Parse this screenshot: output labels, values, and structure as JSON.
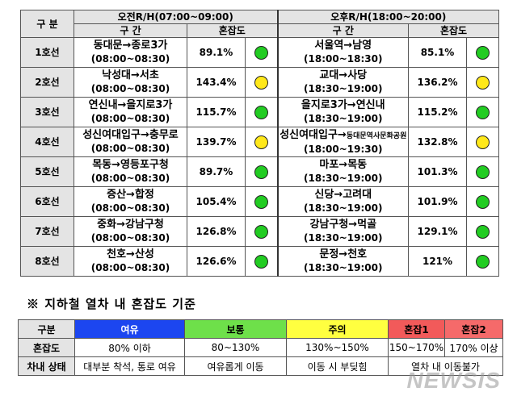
{
  "header": {
    "gubun": "구 분",
    "am": "오전R/H(07:00~09:00)",
    "pm": "오후R/H(18:00~20:00)",
    "section": "구 간",
    "congestion": "혼잡도"
  },
  "colors": {
    "green": "#22cc22",
    "yellow": "#ffe81a",
    "blue": "#1c46f0",
    "lightgreen": "#6ee04a",
    "lightyellow": "#ffff40",
    "red1": "#f25a5a",
    "red2": "#f56a6a"
  },
  "rows": [
    {
      "line": "1호선",
      "am_seg": "동대문→종로3가",
      "am_time": "(08:00~08:30)",
      "am_pct": "89.1%",
      "am_c": "green",
      "pm_seg": "서울역→남영",
      "pm_time": "(18:00~18:30)",
      "pm_pct": "85.1%",
      "pm_c": "green"
    },
    {
      "line": "2호선",
      "am_seg": "낙성대→서초",
      "am_time": "(08:00~08:30)",
      "am_pct": "143.4%",
      "am_c": "yellow",
      "pm_seg": "교대→사당",
      "pm_time": "(18:30~19:00)",
      "pm_pct": "136.2%",
      "pm_c": "yellow"
    },
    {
      "line": "3호선",
      "am_seg": "연신내→을지로3가",
      "am_time": "(08:00~08:30)",
      "am_pct": "115.7%",
      "am_c": "green",
      "pm_seg": "을지로3가→연신내",
      "pm_time": "(18:30~19:00)",
      "pm_pct": "115.2%",
      "pm_c": "green"
    },
    {
      "line": "4호선",
      "am_seg": "성신여대입구→충무로",
      "am_time": "(08:00~08:30)",
      "am_pct": "139.7%",
      "am_c": "yellow",
      "pm_seg": "성신여대입구→",
      "pm_seg_small": "동대문역사문화공원",
      "pm_time": "(18:00~19:30)",
      "pm_pct": "132.8%",
      "pm_c": "yellow"
    },
    {
      "line": "5호선",
      "am_seg": "목동→영등포구청",
      "am_time": "(08:00~08:30)",
      "am_pct": "89.7%",
      "am_c": "green",
      "pm_seg": "마포→목동",
      "pm_time": "(18:30~19:00)",
      "pm_pct": "101.3%",
      "pm_c": "green"
    },
    {
      "line": "6호선",
      "am_seg": "증산→합정",
      "am_time": "(08:00~08:30)",
      "am_pct": "105.4%",
      "am_c": "green",
      "pm_seg": "신당→고려대",
      "pm_time": "(18:30~19:00)",
      "pm_pct": "101.9%",
      "pm_c": "green"
    },
    {
      "line": "7호선",
      "am_seg": "중화→강남구청",
      "am_time": "(08:00~08:30)",
      "am_pct": "126.8%",
      "am_c": "green",
      "pm_seg": "강남구청→먹골",
      "pm_time": "(18:30~19:00)",
      "pm_pct": "129.1%",
      "pm_c": "green"
    },
    {
      "line": "8호선",
      "am_seg": "천호→산성",
      "am_time": "(08:00~08:30)",
      "am_pct": "126.6%",
      "am_c": "green",
      "pm_seg": "문정→천호",
      "pm_time": "(18:30~19:00)",
      "pm_pct": "121%",
      "pm_c": "green"
    }
  ],
  "note": "※  지하철 열차 내 혼잡도 기준",
  "legend": {
    "label_row1": "구분",
    "label_row2": "혼잡도",
    "label_row3": "차내 상태",
    "levels": [
      {
        "name": "여유",
        "range": "80% 이하",
        "state": "대부분 착석, 통로 여유",
        "color": "blue",
        "text_color": "#ffffff"
      },
      {
        "name": "보통",
        "range": "80~130%",
        "state": "여유롭게 이동",
        "color": "lightgreen",
        "text_color": "#000000"
      },
      {
        "name": "주의",
        "range": "130%~150%",
        "state": "이동 시 부딪힘",
        "color": "lightyellow",
        "text_color": "#000000"
      },
      {
        "name": "혼잡1",
        "range": "150~170%",
        "state": "열차 내 이동불가",
        "color": "red1",
        "text_color": "#000000"
      },
      {
        "name": "혼잡2",
        "range": "170% 이상",
        "color": "red2",
        "text_color": "#000000"
      }
    ]
  },
  "watermark": "NEWSIS"
}
